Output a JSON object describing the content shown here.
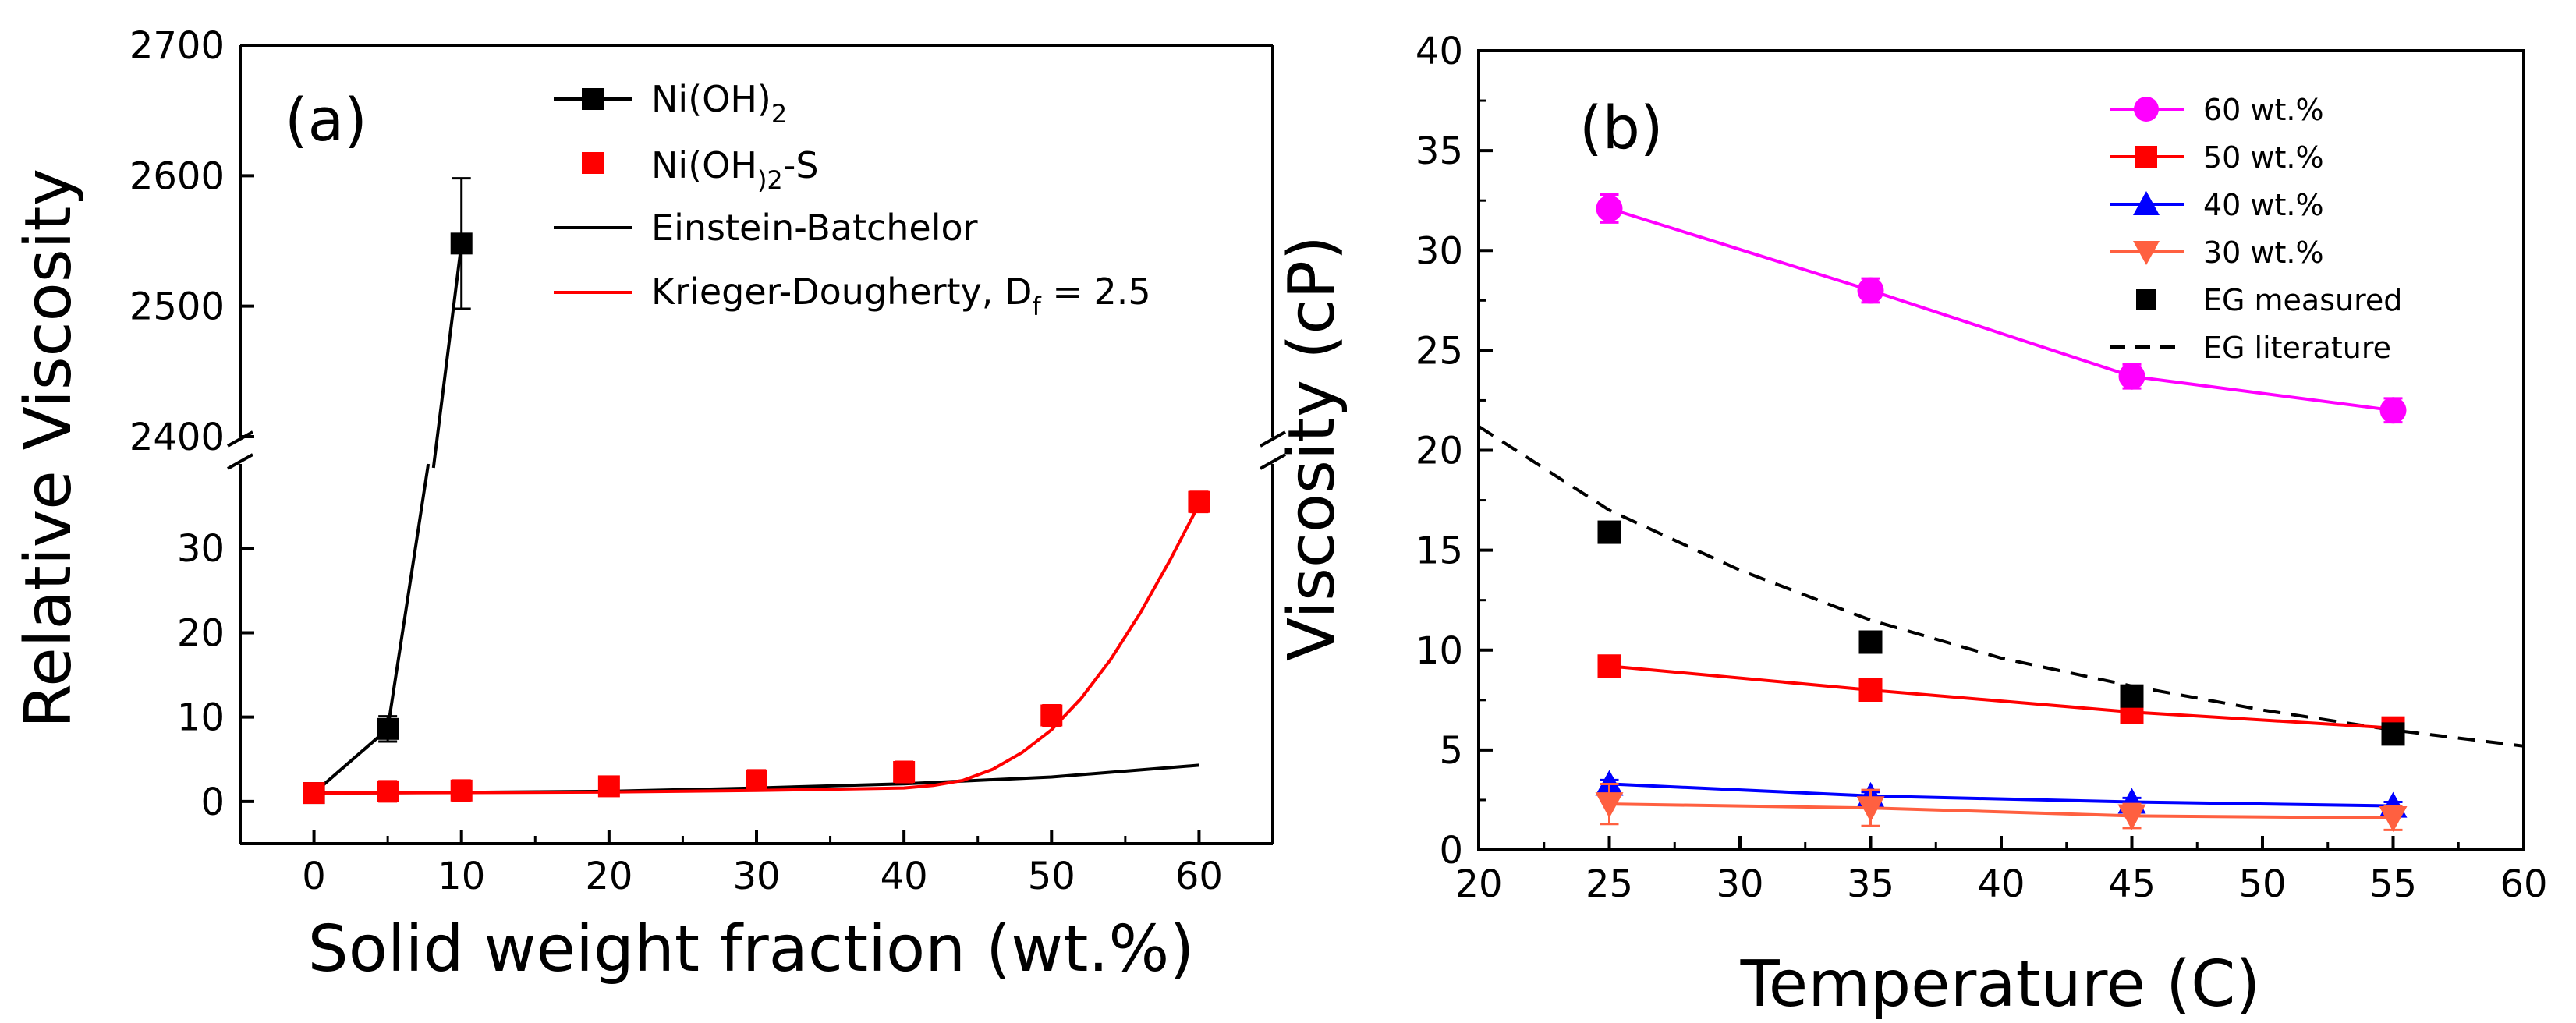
{
  "chart_data": [
    {
      "type": "scatter",
      "panel_label": "(a)",
      "xlabel": "Solid weight fraction (wt.%)",
      "ylabel": "Relative Viscosity",
      "xlim": [
        -5,
        65
      ],
      "xticks": [
        0,
        10,
        20,
        30,
        40,
        50,
        60
      ],
      "ylim_lower": [
        -5,
        40
      ],
      "yticks_lower": [
        0,
        10,
        20,
        30
      ],
      "ylim_upper": [
        2400,
        2700
      ],
      "yticks_upper": [
        2400,
        2500,
        2600,
        2700
      ],
      "axis_break": true,
      "legend": [
        {
          "name": "Ni(OH)",
          "sub": "2",
          "suffix": "",
          "style": "black-square-line"
        },
        {
          "name": "Ni(OH",
          "sub": ")2",
          "suffix": "-S",
          "style": "red-square"
        },
        {
          "name": "Einstein-Batchelor",
          "sub": "",
          "suffix": "",
          "style": "black-line"
        },
        {
          "name": "Krieger-Dougherty, D",
          "sub": "f",
          "suffix": " = 2.5",
          "style": "red-line"
        }
      ],
      "series": [
        {
          "name": "Ni(OH)2",
          "color": "#000000",
          "marker": "square",
          "line": true,
          "x": [
            0,
            5,
            10
          ],
          "y": [
            1,
            8.6,
            2548
          ],
          "yerr": [
            0.8,
            1.5,
            50
          ]
        },
        {
          "name": "Ni(OH)2-S",
          "color": "#ff0000",
          "marker": "square",
          "line": false,
          "x": [
            0,
            5,
            10,
            20,
            30,
            40,
            50,
            60
          ],
          "y": [
            1,
            1.2,
            1.3,
            1.8,
            2.5,
            3.5,
            10.2,
            35.5
          ],
          "yerr": [
            1,
            1.2,
            1.2,
            1,
            1.2,
            1.2,
            1.2,
            1.2
          ]
        },
        {
          "name": "Einstein-Batchelor",
          "color": "#000000",
          "type": "line",
          "x": [
            0,
            10,
            20,
            30,
            40,
            50,
            60
          ],
          "y": [
            1,
            1.08,
            1.2,
            1.6,
            2.1,
            2.9,
            4.3
          ]
        },
        {
          "name": "Krieger-Dougherty, Df = 2.5",
          "color": "#ff0000",
          "type": "line",
          "x": [
            0,
            10,
            20,
            30,
            40,
            42,
            44,
            46,
            48,
            50,
            52,
            54,
            56,
            58,
            60
          ],
          "y": [
            1,
            1.05,
            1.12,
            1.3,
            1.6,
            1.9,
            2.5,
            3.8,
            5.8,
            8.5,
            12.2,
            16.8,
            22.3,
            28.5,
            35.2
          ]
        }
      ]
    },
    {
      "type": "line",
      "panel_label": "(b)",
      "xlabel": "Temperature (C)",
      "ylabel": "Viscosity (cP)",
      "xlim": [
        20,
        60
      ],
      "xticks": [
        20,
        25,
        30,
        35,
        40,
        45,
        50,
        55,
        60
      ],
      "ylim": [
        0,
        40
      ],
      "yticks": [
        0,
        5,
        10,
        15,
        20,
        25,
        30,
        35,
        40
      ],
      "legend": [
        {
          "name": "60 wt.%",
          "style": "magenta-circle"
        },
        {
          "name": "50 wt.%",
          "style": "red-square"
        },
        {
          "name": "40 wt.%",
          "style": "blue-triangle-up"
        },
        {
          "name": "30 wt.%",
          "style": "orange-triangle-down"
        },
        {
          "name": "EG measured",
          "style": "black-square"
        },
        {
          "name": "EG literature",
          "style": "black-dash"
        }
      ],
      "series": [
        {
          "name": "60 wt.%",
          "color": "#ff00ff",
          "marker": "circle",
          "line": true,
          "x": [
            25,
            35,
            45,
            55
          ],
          "y": [
            32.1,
            28.0,
            23.7,
            22.0
          ],
          "yerr": [
            0.7,
            0.6,
            0.6,
            0.6
          ]
        },
        {
          "name": "50 wt.%",
          "color": "#ff0000",
          "marker": "square",
          "line": true,
          "x": [
            25,
            35,
            45,
            55
          ],
          "y": [
            9.2,
            8.0,
            6.9,
            6.1
          ],
          "yerr": [
            0.2,
            0.2,
            0.2,
            0.2
          ]
        },
        {
          "name": "40 wt.%",
          "color": "#0000ff",
          "marker": "triangle-up",
          "line": true,
          "x": [
            25,
            35,
            45,
            55
          ],
          "y": [
            3.3,
            2.7,
            2.4,
            2.2
          ],
          "yerr": [
            0.2,
            0.2,
            0.2,
            0.2
          ]
        },
        {
          "name": "30 wt.%",
          "color": "#ff6040",
          "marker": "triangle-down",
          "line": true,
          "x": [
            25,
            35,
            45,
            55
          ],
          "y": [
            2.3,
            2.1,
            1.7,
            1.6
          ],
          "yerr": [
            1.0,
            0.9,
            0.6,
            0.6
          ]
        },
        {
          "name": "EG measured",
          "color": "#000000",
          "marker": "square",
          "line": false,
          "x": [
            25,
            35,
            45,
            55
          ],
          "y": [
            15.9,
            10.4,
            7.7,
            5.8
          ],
          "yerr": [
            0,
            0,
            0.3,
            0.3
          ]
        },
        {
          "name": "EG literature",
          "color": "#000000",
          "type": "dashed",
          "x": [
            20,
            25,
            30,
            35,
            40,
            45,
            50,
            55,
            60
          ],
          "y": [
            21.2,
            17.0,
            14.0,
            11.5,
            9.6,
            8.2,
            7.0,
            6.0,
            5.2
          ]
        }
      ]
    }
  ]
}
